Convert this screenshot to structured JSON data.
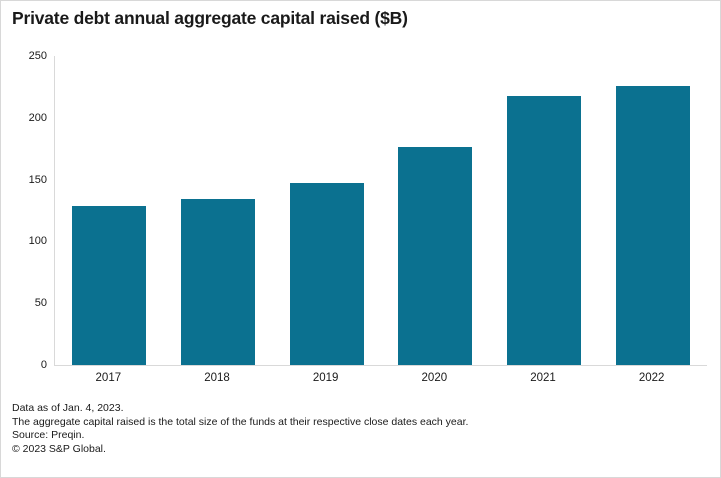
{
  "chart_data": {
    "type": "bar",
    "title": "Private debt annual aggregate capital raised ($B)",
    "categories": [
      "2017",
      "2018",
      "2019",
      "2020",
      "2021",
      "2022"
    ],
    "values": [
      129,
      134,
      147,
      176,
      218,
      226
    ],
    "xlabel": "",
    "ylabel": "",
    "ylim": [
      0,
      250
    ],
    "yticks": [
      0,
      50,
      100,
      150,
      200,
      250
    ],
    "grid": false,
    "legend": "none"
  },
  "footnotes": [
    "Data as of Jan. 4, 2023.",
    "The aggregate capital raised is the total size of the funds at their respective close dates each year.",
    "Source: Preqin.",
    "© 2023 S&P Global."
  ],
  "colors": {
    "bar": "#0B7190",
    "axis_line": "#D9D9D9",
    "text": "#1A1A1A",
    "background": "#FFFFFF",
    "frame_border": "#D8D8D8"
  }
}
